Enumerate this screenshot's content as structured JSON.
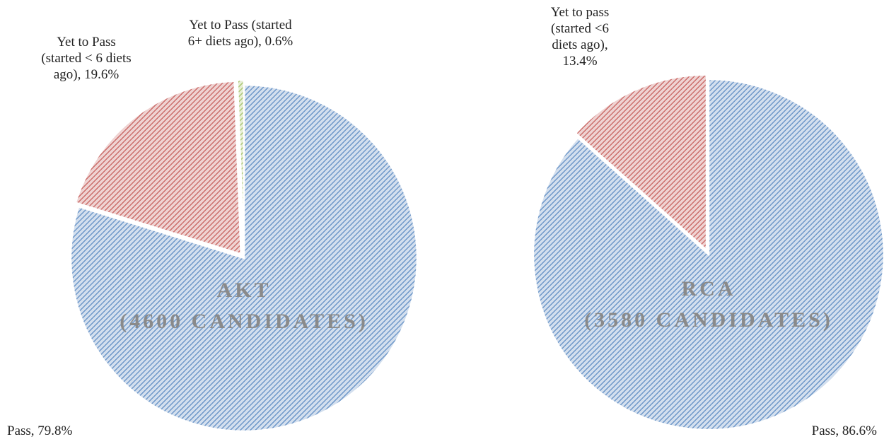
{
  "chart_data": [
    {
      "type": "pie",
      "title": "AKT",
      "subtitle": "(4600 CANDIDATES)",
      "values": [
        79.8,
        19.6,
        0.6
      ],
      "value_labels": [
        "Pass, 79.8%",
        "Yet to Pass (started < 6 diets ago), 19.6%",
        "Yet to Pass (started 6+ diets ago), 0.6%"
      ],
      "colors": [
        "#4f81bd",
        "#c0504d",
        "#9bbb59"
      ]
    },
    {
      "type": "pie",
      "title": "RCA",
      "subtitle": "(3580 CANDIDATES)",
      "values": [
        86.6,
        13.4
      ],
      "value_labels": [
        "Pass, 86.6%",
        "Yet to pass (started <6 diets ago), 13.4%"
      ],
      "colors": [
        "#4f81bd",
        "#c0504d"
      ]
    }
  ]
}
